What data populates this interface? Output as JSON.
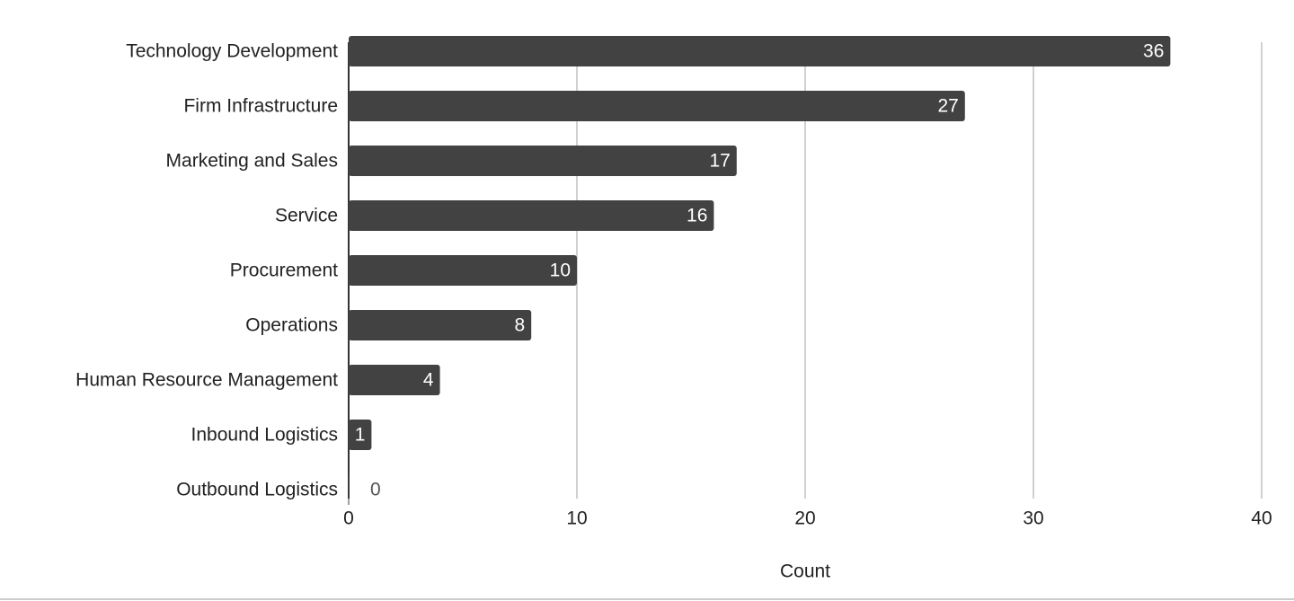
{
  "chart_data": {
    "type": "bar",
    "orientation": "horizontal",
    "categories": [
      "Technology Development",
      "Firm Infrastructure",
      "Marketing and Sales",
      "Service",
      "Procurement",
      "Operations",
      "Human Resource Management",
      "Inbound Logistics",
      "Outbound Logistics"
    ],
    "values": [
      36,
      27,
      17,
      16,
      10,
      8,
      4,
      1,
      0
    ],
    "color": "#424242",
    "x_label": "Count",
    "xlim": [
      0,
      40
    ],
    "xticks": [
      0,
      10,
      20,
      30,
      40
    ],
    "grid": true
  }
}
